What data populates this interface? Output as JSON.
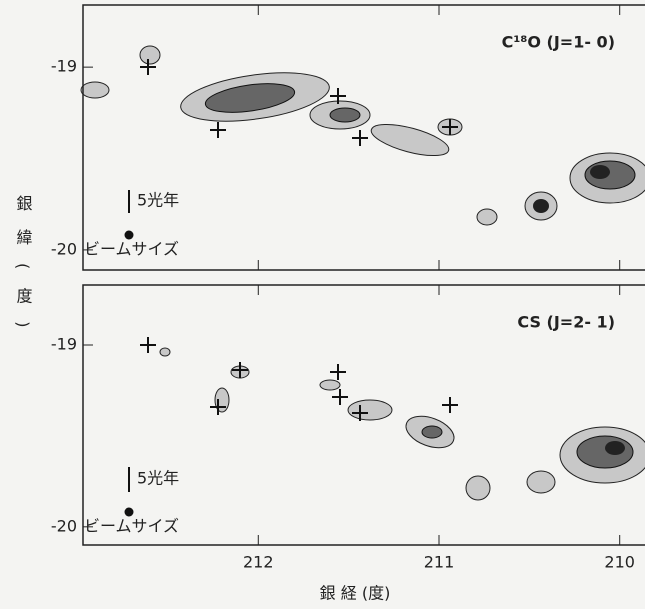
{
  "chart_data": [
    {
      "type": "contour",
      "title": "C¹⁸O (J=1- 0)",
      "ylabel": "銀緯(度)",
      "xlim": [
        212.97,
        209.86
      ],
      "xticks": [
        212,
        211,
        210
      ],
      "ylim": [
        -20.11,
        -18.66
      ],
      "yticks": [
        -19,
        -20
      ],
      "annotations": [
        "5光年",
        "ビームサイズ"
      ]
    },
    {
      "type": "contour",
      "title": "CS (J=2- 1)",
      "xlabel": "銀 経 (度)",
      "xlim": [
        212.97,
        209.86
      ],
      "xticks": [
        212,
        211,
        210
      ],
      "ylim": [
        -20.1,
        -18.67
      ],
      "yticks": [
        -19,
        -20
      ],
      "annotations": [
        "5光年",
        "ビームサイズ"
      ]
    }
  ]
}
